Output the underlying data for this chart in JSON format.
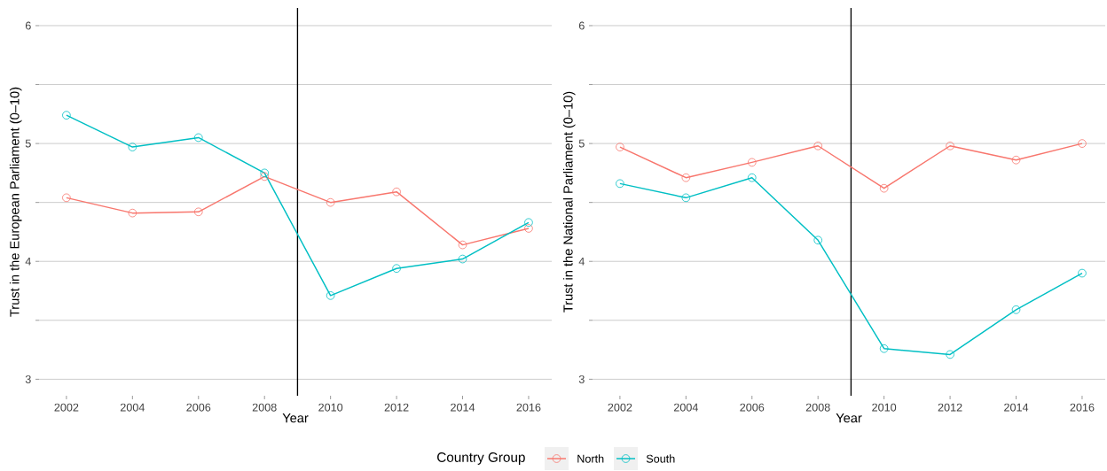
{
  "chart_data": [
    {
      "type": "line",
      "xlabel": "Year",
      "ylabel": "Trust in the European Parliament (0–10)",
      "legend_title": "Country Group",
      "legend": "bottom",
      "x": [
        2002,
        2004,
        2006,
        2008,
        2010,
        2012,
        2014,
        2016
      ],
      "series": [
        {
          "name": "North",
          "color": "#f8766d",
          "values": [
            4.54,
            4.41,
            4.42,
            4.72,
            4.5,
            4.59,
            4.14,
            4.28
          ]
        },
        {
          "name": "South",
          "color": "#00bfc4",
          "values": [
            5.24,
            4.97,
            5.05,
            4.75,
            3.71,
            3.94,
            4.02,
            4.33
          ]
        }
      ],
      "xlim": [
        2001.17,
        2016.7
      ],
      "ylim": [
        2.86,
        6.15
      ],
      "xticks": [
        2002,
        2004,
        2006,
        2008,
        2010,
        2012,
        2014,
        2016
      ],
      "yticks": [
        3,
        {
          "value": 3.5,
          "label": null
        },
        4,
        {
          "value": 4.5,
          "label": null
        },
        5,
        {
          "value": 5.5,
          "label": null
        },
        6
      ],
      "grid": "y",
      "marker": "circle",
      "line_style": "solid",
      "ref_lines": [
        {
          "axis": "x",
          "value": 2009,
          "color": "#000000"
        }
      ]
    },
    {
      "type": "line",
      "xlabel": "Year",
      "ylabel": "Trust in the National Parliament (0–10)",
      "x": [
        2002,
        2004,
        2006,
        2008,
        2010,
        2012,
        2014,
        2016
      ],
      "series": [
        {
          "color": "#f8766d",
          "values": [
            4.97,
            4.71,
            4.84,
            4.98,
            4.62,
            4.98,
            4.86,
            5.0
          ]
        },
        {
          "color": "#00bfc4",
          "values": [
            4.66,
            4.54,
            4.71,
            4.18,
            3.26,
            3.21,
            3.59,
            3.9
          ]
        }
      ],
      "xlim": [
        2001.17,
        2016.7
      ],
      "ylim": [
        2.86,
        6.15
      ],
      "xticks": [
        2002,
        2004,
        2006,
        2008,
        2010,
        2012,
        2014,
        2016
      ],
      "yticks": [
        3,
        {
          "value": 3.5,
          "label": null
        },
        4,
        {
          "value": 4.5,
          "label": null
        },
        5,
        {
          "value": 5.5,
          "label": null
        },
        6
      ],
      "grid": "y",
      "marker": "circle",
      "line_style": "solid",
      "ref_lines": [
        {
          "axis": "x",
          "value": 2009,
          "color": "#000000"
        }
      ]
    }
  ]
}
